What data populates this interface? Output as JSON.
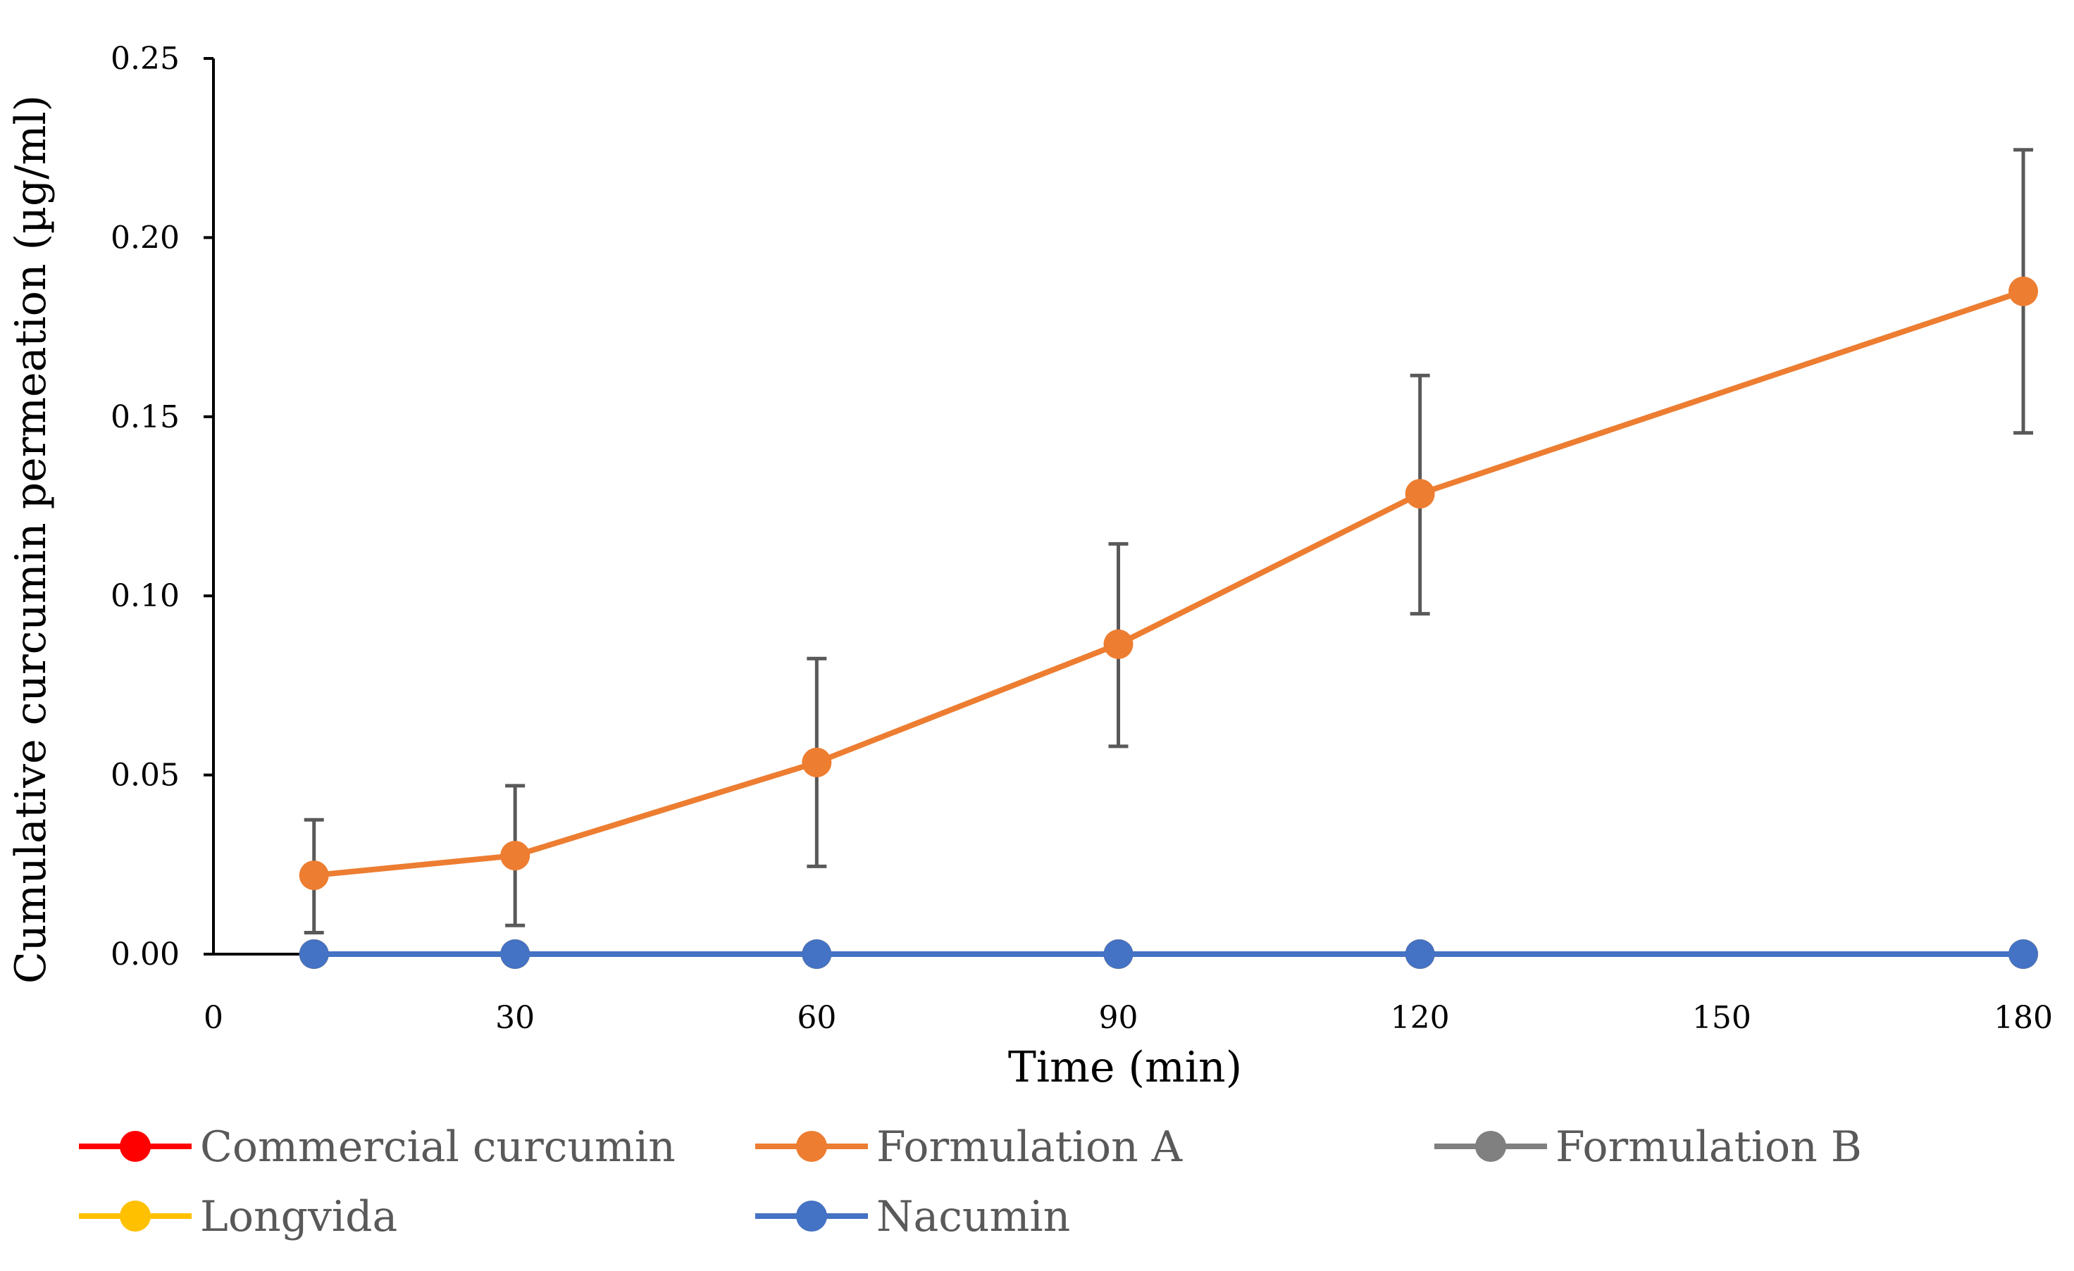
{
  "chart_data": {
    "type": "line",
    "title": "",
    "xlabel": "Time (min)",
    "ylabel": "Cumulative curcumin permeation (µg/ml)",
    "xlim": [
      0,
      180
    ],
    "ylim": [
      0,
      0.25
    ],
    "xticks": [
      0,
      30,
      60,
      90,
      120,
      150,
      180
    ],
    "xtick_labels": [
      "0",
      "30",
      "60",
      "90",
      "120",
      "150",
      "180"
    ],
    "yticks": [
      0,
      0.05,
      0.1,
      0.15,
      0.2,
      0.25
    ],
    "ytick_labels": [
      "0.00",
      "0.05",
      "0.10",
      "0.15",
      "0.20",
      "0.25"
    ],
    "x": [
      10,
      30,
      60,
      90,
      120,
      180
    ],
    "legend_position": "bottom",
    "series": [
      {
        "name": "Commercial curcumin",
        "color": "#FF0000",
        "values": [
          0,
          0,
          0,
          0,
          0,
          0
        ]
      },
      {
        "name": "Formulation A",
        "color": "#ED7D31",
        "values": [
          0.022,
          0.0275,
          0.0535,
          0.0865,
          0.1285,
          0.185
        ],
        "error_low": [
          0.006,
          0.008,
          0.0245,
          0.058,
          0.095,
          0.1455
        ],
        "error_high": [
          0.0375,
          0.047,
          0.0825,
          0.1145,
          0.1615,
          0.2245
        ]
      },
      {
        "name": "Formulation B",
        "color": "#808080",
        "values": [
          0,
          0,
          0,
          0,
          0,
          0
        ]
      },
      {
        "name": "Longvida",
        "color": "#FFC000",
        "values": [
          0,
          0,
          0,
          0,
          0,
          0
        ]
      },
      {
        "name": "Nacumin",
        "color": "#4472C4",
        "values": [
          0,
          0,
          0,
          0,
          0,
          0
        ]
      }
    ]
  }
}
